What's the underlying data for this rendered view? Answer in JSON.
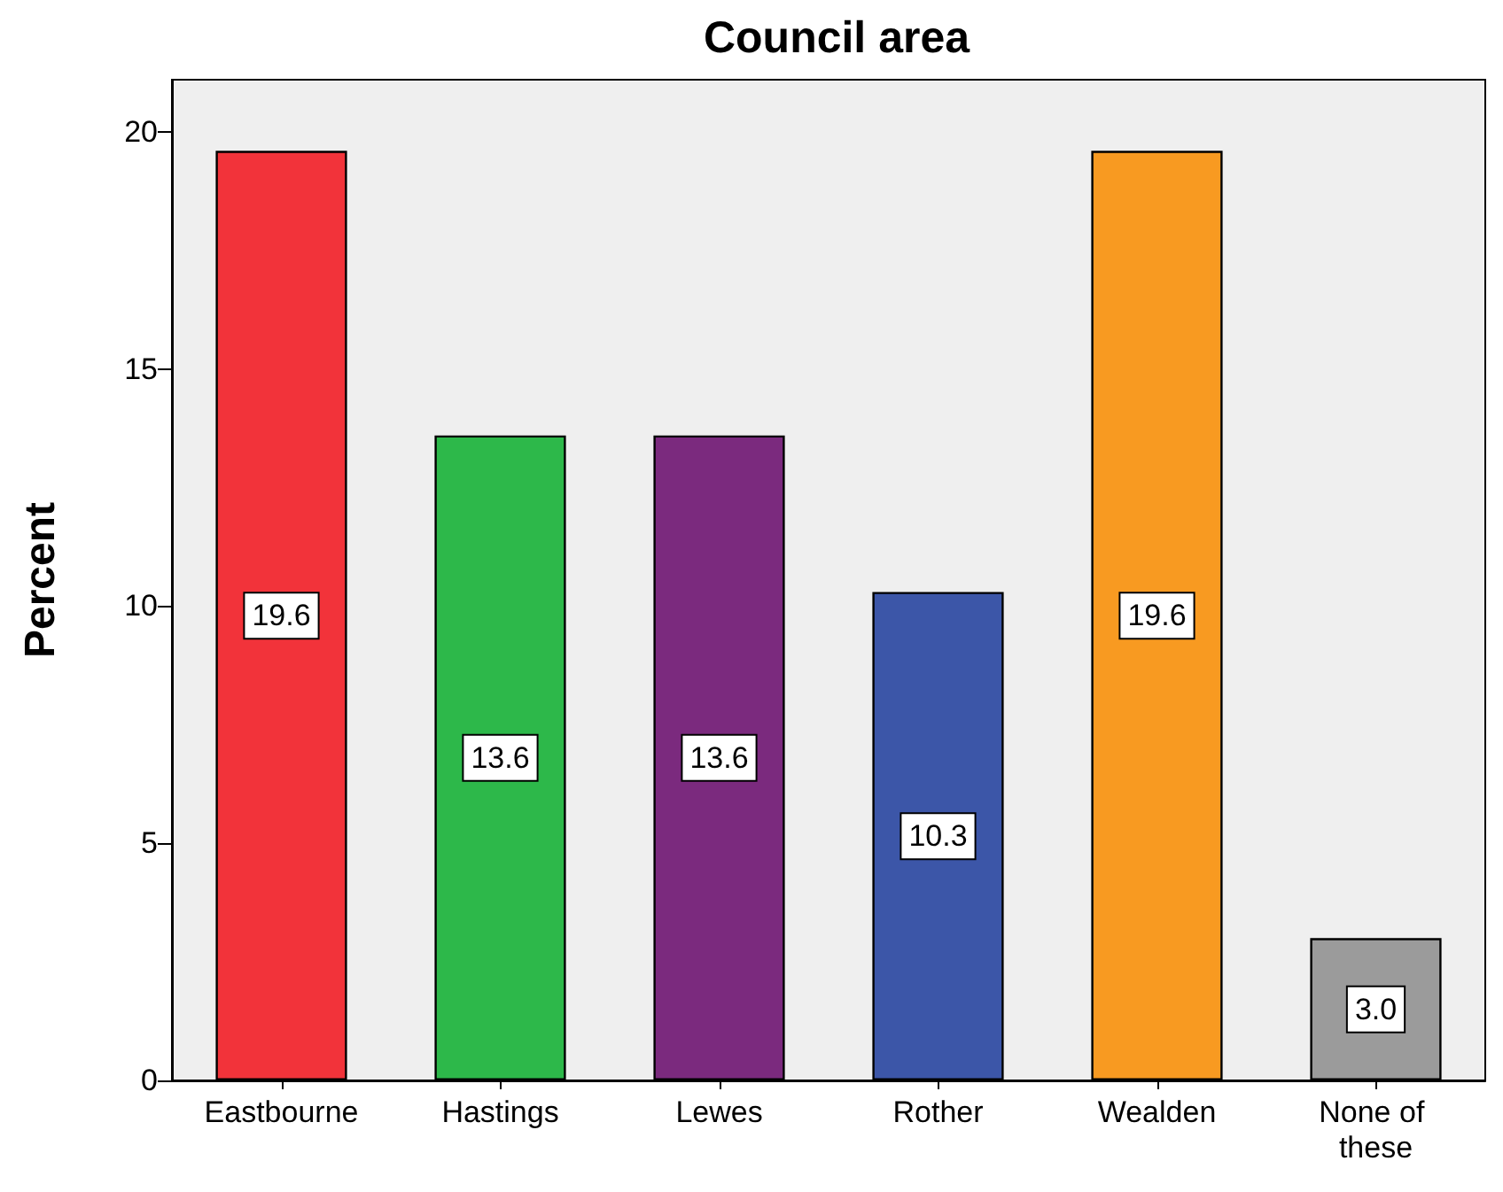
{
  "chart_data": {
    "type": "bar",
    "title": "Council area",
    "ylabel": "Percent",
    "categories": [
      "Eastbourne",
      "Hastings",
      "Lewes",
      "Rother",
      "Wealden",
      "None of these"
    ],
    "values": [
      19.6,
      13.6,
      13.6,
      10.3,
      19.6,
      3.0
    ],
    "colors": [
      "#f2333a",
      "#2db84a",
      "#7b2a7e",
      "#3c56a8",
      "#f89a21",
      "#9b9b9b"
    ],
    "value_labels": [
      "19.6",
      "13.6",
      "13.6",
      "10.3",
      "19.6",
      "3.0"
    ],
    "ylim": [
      0,
      21.1
    ],
    "yticks": [
      0,
      5,
      10,
      15,
      20
    ],
    "grid": false
  }
}
